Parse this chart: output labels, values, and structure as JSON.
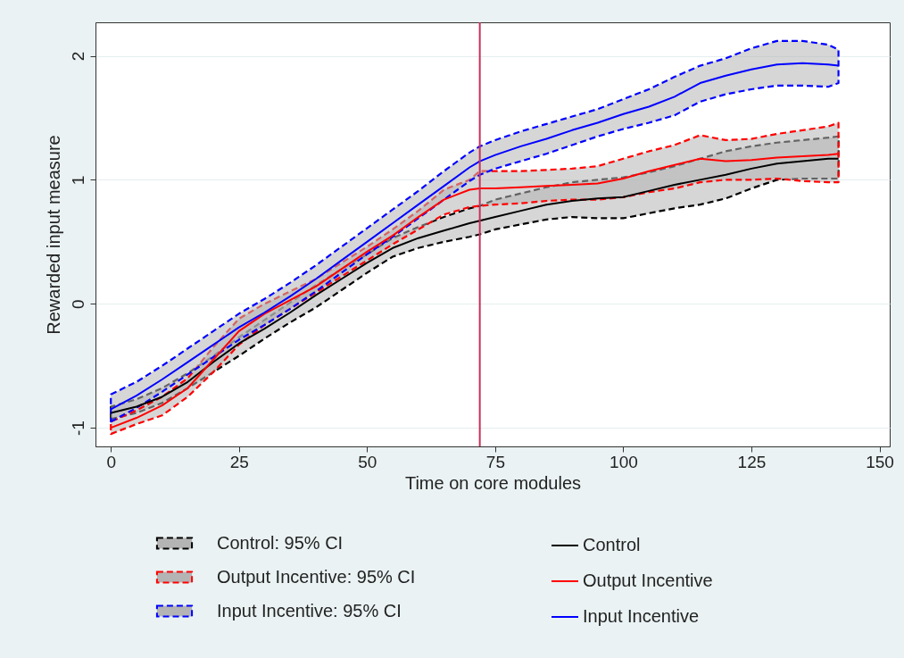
{
  "chart_data": {
    "type": "line",
    "xlabel": "Time on core modules",
    "ylabel": "Rewarded input measure",
    "x": [
      0,
      5,
      10,
      15,
      20,
      25,
      30,
      35,
      40,
      45,
      50,
      55,
      60,
      65,
      70,
      72,
      75,
      80,
      85,
      90,
      95,
      100,
      105,
      110,
      115,
      120,
      125,
      130,
      135,
      140,
      142
    ],
    "series": [
      {
        "name": "Control",
        "color": "#000000",
        "values": [
          -0.88,
          -0.83,
          -0.75,
          -0.63,
          -0.47,
          -0.32,
          -0.2,
          -0.07,
          0.07,
          0.2,
          0.33,
          0.45,
          0.53,
          0.59,
          0.65,
          0.67,
          0.7,
          0.75,
          0.8,
          0.83,
          0.85,
          0.86,
          0.91,
          0.96,
          1.0,
          1.04,
          1.09,
          1.13,
          1.15,
          1.17,
          1.17
        ],
        "lower": [
          -0.93,
          -0.88,
          -0.8,
          -0.68,
          -0.55,
          -0.42,
          -0.28,
          -0.15,
          -0.03,
          0.11,
          0.25,
          0.38,
          0.45,
          0.5,
          0.54,
          0.56,
          0.6,
          0.64,
          0.68,
          0.7,
          0.69,
          0.69,
          0.73,
          0.77,
          0.8,
          0.85,
          0.93,
          1.0,
          1.01,
          1.01,
          1.01
        ],
        "upper": [
          -0.83,
          -0.77,
          -0.68,
          -0.56,
          -0.42,
          -0.27,
          -0.13,
          0.01,
          0.15,
          0.28,
          0.4,
          0.53,
          0.62,
          0.7,
          0.77,
          0.79,
          0.84,
          0.89,
          0.94,
          0.98,
          1.0,
          1.02,
          1.06,
          1.11,
          1.17,
          1.23,
          1.27,
          1.3,
          1.32,
          1.34,
          1.35
        ]
      },
      {
        "name": "Output Incentive",
        "color": "#ff0000",
        "values": [
          -1.0,
          -0.92,
          -0.82,
          -0.68,
          -0.45,
          -0.22,
          -0.08,
          0.03,
          0.14,
          0.28,
          0.42,
          0.55,
          0.7,
          0.84,
          0.92,
          0.93,
          0.93,
          0.94,
          0.95,
          0.96,
          0.97,
          1.01,
          1.07,
          1.12,
          1.17,
          1.15,
          1.16,
          1.18,
          1.19,
          1.2,
          1.21
        ],
        "lower": [
          -1.05,
          -0.97,
          -0.9,
          -0.75,
          -0.55,
          -0.33,
          -0.17,
          -0.04,
          0.09,
          0.22,
          0.35,
          0.48,
          0.6,
          0.72,
          0.78,
          0.79,
          0.8,
          0.81,
          0.83,
          0.84,
          0.84,
          0.86,
          0.9,
          0.93,
          0.98,
          1.0,
          1.0,
          1.01,
          0.99,
          0.98,
          0.98
        ],
        "upper": [
          -0.95,
          -0.86,
          -0.75,
          -0.6,
          -0.35,
          -0.12,
          0.0,
          0.1,
          0.2,
          0.33,
          0.46,
          0.6,
          0.75,
          0.92,
          1.0,
          1.07,
          1.07,
          1.07,
          1.08,
          1.09,
          1.11,
          1.17,
          1.23,
          1.28,
          1.36,
          1.32,
          1.33,
          1.37,
          1.4,
          1.43,
          1.46
        ]
      },
      {
        "name": "Input Incentive",
        "color": "#0000ff",
        "values": [
          -0.85,
          -0.74,
          -0.61,
          -0.47,
          -0.33,
          -0.19,
          -0.07,
          0.06,
          0.2,
          0.35,
          0.5,
          0.65,
          0.8,
          0.95,
          1.1,
          1.15,
          1.2,
          1.27,
          1.33,
          1.4,
          1.46,
          1.53,
          1.59,
          1.67,
          1.78,
          1.84,
          1.89,
          1.93,
          1.94,
          1.93,
          1.92
        ],
        "lower": [
          -0.95,
          -0.84,
          -0.71,
          -0.57,
          -0.43,
          -0.29,
          -0.17,
          -0.04,
          0.1,
          0.25,
          0.4,
          0.54,
          0.69,
          0.84,
          0.99,
          1.04,
          1.09,
          1.15,
          1.21,
          1.28,
          1.35,
          1.41,
          1.46,
          1.52,
          1.63,
          1.69,
          1.73,
          1.76,
          1.76,
          1.75,
          1.78
        ],
        "upper": [
          -0.73,
          -0.63,
          -0.5,
          -0.36,
          -0.22,
          -0.08,
          0.04,
          0.17,
          0.31,
          0.46,
          0.61,
          0.76,
          0.91,
          1.07,
          1.22,
          1.27,
          1.32,
          1.39,
          1.45,
          1.51,
          1.57,
          1.65,
          1.73,
          1.83,
          1.92,
          1.98,
          2.06,
          2.12,
          2.12,
          2.09,
          2.05
        ]
      }
    ],
    "annotations": [
      "Control: 95% CI",
      "Output Incentive: 95% CI",
      "Input Incentive: 95% CI"
    ],
    "xlim": [
      -3,
      152
    ],
    "xticks": [
      0,
      25,
      50,
      75,
      100,
      125,
      150
    ],
    "ylim": [
      -1.15,
      2.27
    ],
    "yticks": [
      {
        "value": -1,
        "label": "-1"
      },
      {
        "value": 0,
        "label": "0"
      },
      {
        "value": 1,
        "label": "1"
      },
      {
        "value": 2,
        "label": "2"
      }
    ],
    "ref_lines": [
      {
        "axis": "x",
        "value": 72,
        "color": "#c8305a"
      }
    ],
    "grid": "y",
    "legend": "bottom"
  }
}
